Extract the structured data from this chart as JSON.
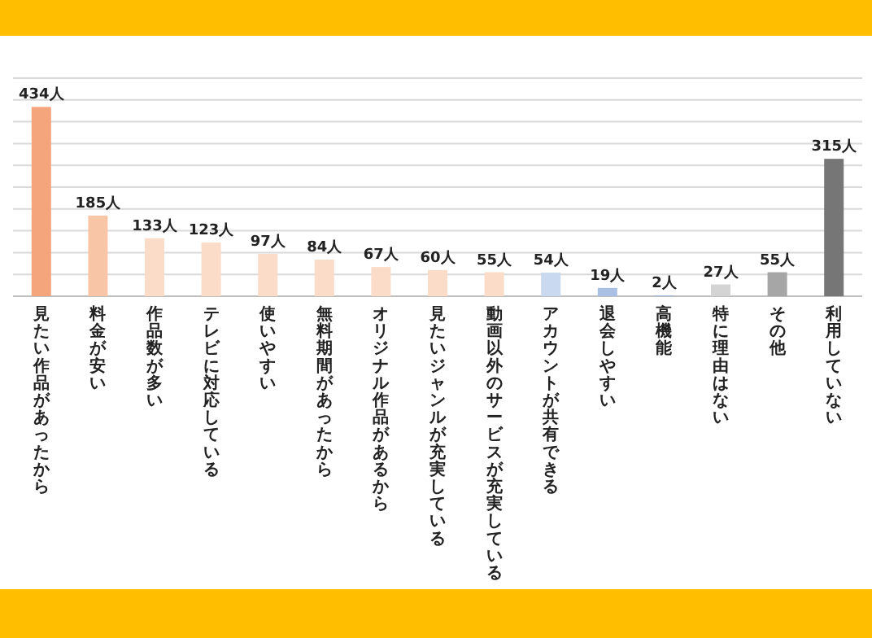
{
  "chart_data": {
    "type": "bar",
    "categories": [
      "見たい作品があったから",
      "料金が安い",
      "作品数が多い",
      "テレビに対応している",
      "使いやすい",
      "無料期間があったから",
      "オリジナル作品があるから",
      "見たいジャンルが充実している",
      "動画以外のサービスが充実している",
      "アカウントが共有できる",
      "退会しやすい",
      "高機能",
      "特に理由はない",
      "その他",
      "利用していない"
    ],
    "values": [
      434,
      185,
      133,
      123,
      97,
      84,
      67,
      60,
      55,
      54,
      19,
      2,
      27,
      55,
      315
    ],
    "colors": [
      "#f4a57c",
      "#f8c6a6",
      "#fbdcc9",
      "#fbdcc9",
      "#fbdcc9",
      "#fbdcc9",
      "#fbdcc9",
      "#fbdcc9",
      "#fbdcc9",
      "#c9d9ef",
      "#a9c0e4",
      "#9fb5dd",
      "#d4d4d4",
      "#a6a6a6",
      "#767676"
    ],
    "value_labels": [
      "434人",
      "185人",
      "133人",
      "123人",
      "97人",
      "84人",
      "67人",
      "60人",
      "55人",
      "54人",
      "19人",
      "2人",
      "27人",
      "55人",
      "315人"
    ],
    "ylim": [
      0,
      500
    ],
    "yticks": [
      {
        "value": 0,
        "label": null
      },
      {
        "value": 50,
        "label": null
      },
      {
        "value": 100,
        "label": null
      },
      {
        "value": 150,
        "label": null
      },
      {
        "value": 200,
        "label": null
      },
      {
        "value": 250,
        "label": null
      },
      {
        "value": 300,
        "label": null
      },
      {
        "value": 350,
        "label": null
      },
      {
        "value": 400,
        "label": null
      },
      {
        "value": 450,
        "label": null
      },
      {
        "value": 500,
        "label": null
      }
    ],
    "grid": "y"
  }
}
